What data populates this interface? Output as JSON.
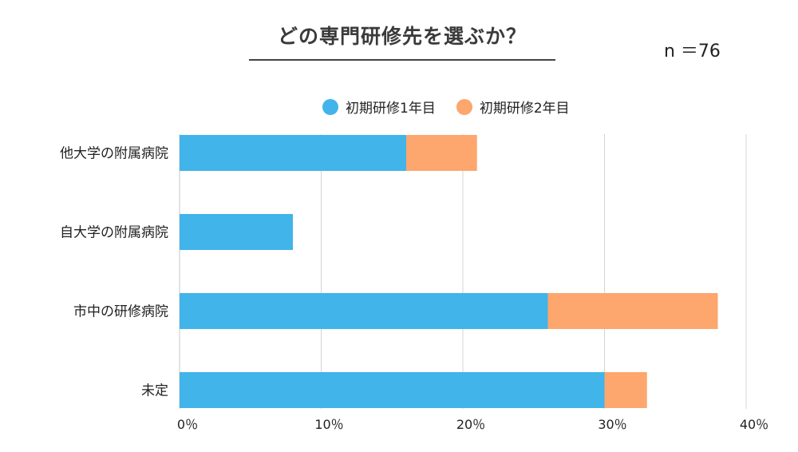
{
  "header": {
    "title": "どの専門研修先を選ぶか？",
    "sample_size": "n ＝76"
  },
  "chart_data": {
    "type": "bar",
    "orientation": "horizontal",
    "stacked": true,
    "categories": [
      "他大学の附属病院",
      "自大学の附属病院",
      "市中の研修病院",
      "未定"
    ],
    "series": [
      {
        "name": "初期研修1年目",
        "color": "#41b4ea",
        "values": [
          16,
          8,
          26,
          30
        ]
      },
      {
        "name": "初期研修2年目",
        "color": "#fda66e",
        "values": [
          5,
          0,
          12,
          3
        ]
      }
    ],
    "xlim": [
      0,
      40
    ],
    "xticks": [
      0,
      10,
      20,
      30,
      40
    ],
    "xtick_labels": [
      "0％",
      "10％",
      "20％",
      "30％",
      "40％"
    ],
    "grid": true,
    "legend_position": "top"
  }
}
